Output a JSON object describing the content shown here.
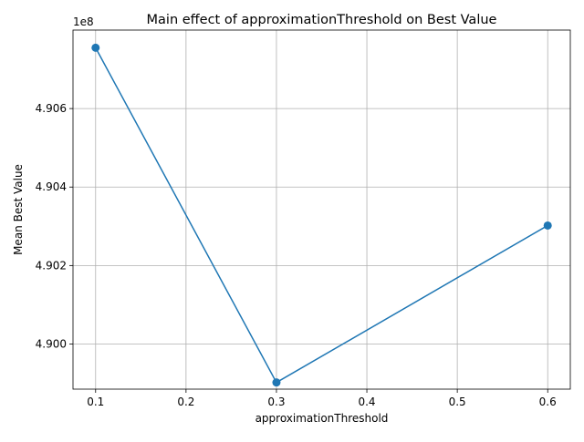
{
  "chart_data": {
    "type": "line",
    "title": "Main effect of approximationThreshold on Best Value",
    "xlabel": "approximationThreshold",
    "ylabel": "Mean Best Value",
    "y_offset_text": "1e8",
    "y_scale": 100000000,
    "xlim": [
      0.075,
      0.625
    ],
    "ylim": [
      489.885,
      490.8
    ],
    "x_ticks": [
      0.1,
      0.2,
      0.3,
      0.4,
      0.5,
      0.6
    ],
    "x_tick_labels": [
      "0.1",
      "0.2",
      "0.3",
      "0.4",
      "0.5",
      "0.6"
    ],
    "y_ticks": [
      4.9,
      4.902,
      4.904,
      4.906
    ],
    "y_tick_labels": [
      "4.900",
      "4.902",
      "4.904",
      "4.906"
    ],
    "grid": true,
    "legend": "none",
    "series": [
      {
        "color": "#1f77b4",
        "marker": "circle",
        "x": [
          0.1,
          0.3,
          0.6
        ],
        "y": [
          490755000,
          489902000,
          490302000
        ]
      }
    ]
  }
}
